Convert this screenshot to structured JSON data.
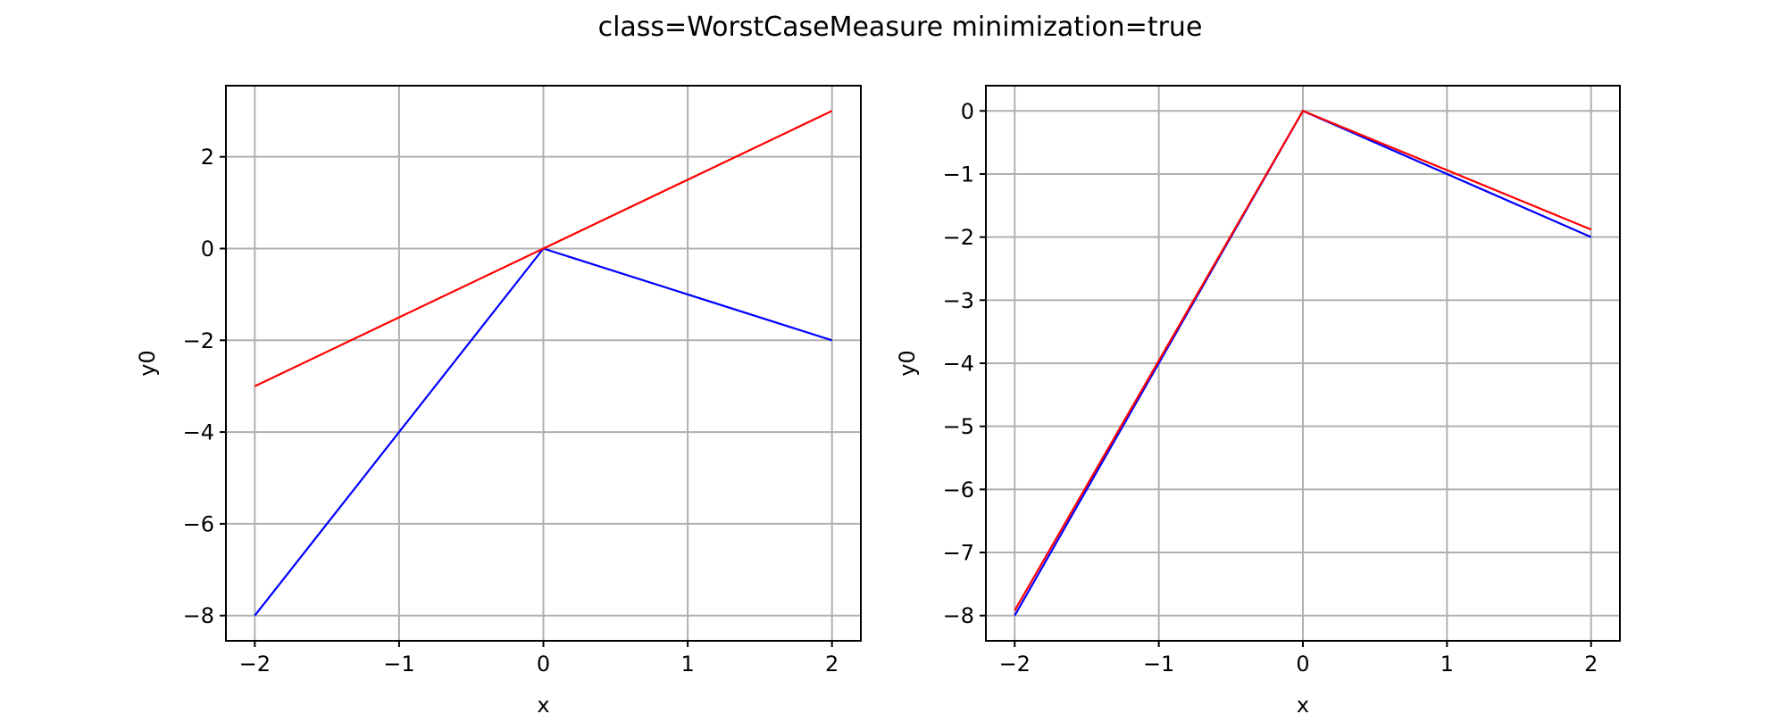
{
  "suptitle": "class=WorstCaseMeasure minimization=true",
  "chart_data": [
    {
      "type": "line",
      "xlabel": "x",
      "ylabel": "y0",
      "xlim": [
        -2.2,
        2.2
      ],
      "ylim": [
        -8.55,
        3.55
      ],
      "grid": true,
      "xticks": [
        -2,
        -1,
        0,
        1,
        2
      ],
      "xtick_labels": [
        "−2",
        "−1",
        "0",
        "1",
        "2"
      ],
      "yticks": [
        -8,
        -6,
        -4,
        -2,
        0,
        2
      ],
      "ytick_labels": [
        "−8",
        "−6",
        "−4",
        "−2",
        "0",
        "2"
      ],
      "series": [
        {
          "color": "#0000ff",
          "x": [
            -2,
            0,
            2
          ],
          "y": [
            -8,
            0,
            -2
          ]
        },
        {
          "color": "#ff0000",
          "x": [
            -2,
            0,
            2
          ],
          "y": [
            -3,
            0,
            3
          ]
        }
      ]
    },
    {
      "type": "line",
      "xlabel": "x",
      "ylabel": "y0",
      "xlim": [
        -2.2,
        2.2
      ],
      "ylim": [
        -8.4,
        0.4
      ],
      "grid": true,
      "xticks": [
        -2,
        -1,
        0,
        1,
        2
      ],
      "xtick_labels": [
        "−2",
        "−1",
        "0",
        "1",
        "2"
      ],
      "yticks": [
        -8,
        -7,
        -6,
        -5,
        -4,
        -3,
        -2,
        -1,
        0
      ],
      "ytick_labels": [
        "−8",
        "−7",
        "−6",
        "−5",
        "−4",
        "−3",
        "−2",
        "−1",
        "0"
      ],
      "series": [
        {
          "color": "#0000ff",
          "x": [
            -2,
            0,
            2
          ],
          "y": [
            -8,
            0,
            -2
          ]
        },
        {
          "color": "#ff0000",
          "x": [
            -2,
            0,
            2
          ],
          "y": [
            -7.92,
            0,
            -1.88
          ]
        }
      ]
    }
  ]
}
